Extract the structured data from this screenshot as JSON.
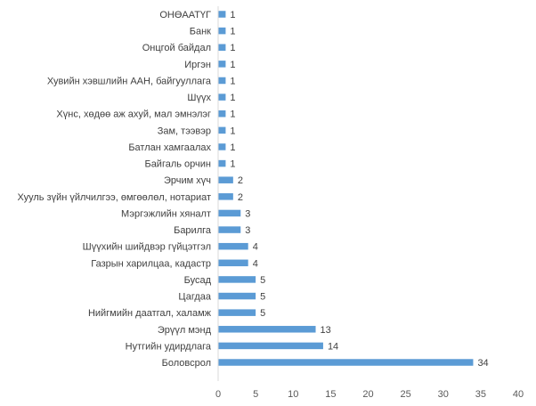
{
  "chart_data": {
    "type": "bar",
    "orientation": "horizontal",
    "title": "",
    "xlabel": "",
    "ylabel": "",
    "categories": [
      "ОНӨААТҮГ",
      "Банк",
      "Онцгой байдал",
      "Иргэн",
      "Хувийн хэвшлийн ААН, байгууллага",
      "Шүүх",
      "Хүнс, хөдөө аж ахуй, мал эмнэлэг",
      "Зам, тээвэр",
      "Батлан хамгаалах",
      "Байгаль орчин",
      "Эрчим хүч",
      "Хууль зүйн үйлчилгээ, өмгөөлөл, нотариат",
      "Мэргэжлийн хяналт",
      "Барилга",
      "Шүүхийн шийдвэр гүйцэтгэл",
      "Газрын харилцаа, кадастр",
      "Бусад",
      "Цагдаа",
      "Нийгмийн даатгал, халамж",
      "Эрүүл мэнд",
      "Нутгийн удирдлага",
      "Боловсрол"
    ],
    "values": [
      1,
      1,
      1,
      1,
      1,
      1,
      1,
      1,
      1,
      1,
      2,
      2,
      3,
      3,
      4,
      4,
      5,
      5,
      5,
      13,
      14,
      34
    ],
    "xlim": [
      0,
      40
    ],
    "xticks": [
      0,
      5,
      10,
      15,
      20,
      25,
      30,
      35,
      40
    ],
    "grid": false,
    "legend": "none",
    "bar_color": "#5B9BD5",
    "axis_color": "#D9D9D9"
  }
}
